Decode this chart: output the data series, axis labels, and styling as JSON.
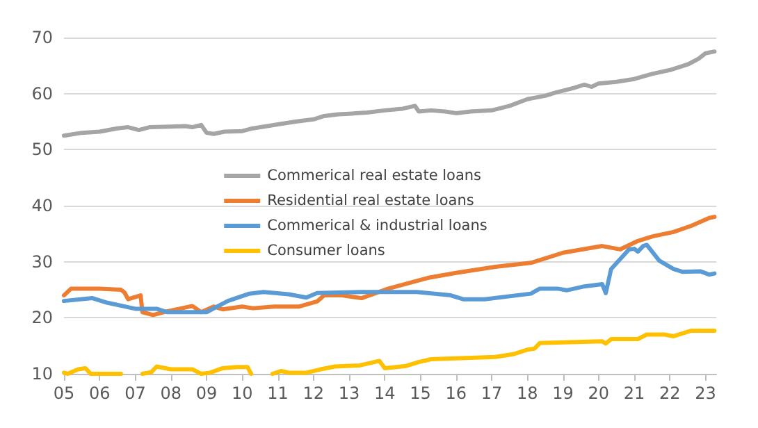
{
  "chart_data": {
    "type": "line",
    "xlim": [
      2005,
      2023.3
    ],
    "xticks": [
      {
        "value": 2005,
        "label": "05"
      },
      {
        "value": 2006,
        "label": "06"
      },
      {
        "value": 2007,
        "label": "07"
      },
      {
        "value": 2008,
        "label": "08"
      },
      {
        "value": 2009,
        "label": "09"
      },
      {
        "value": 2010,
        "label": "10"
      },
      {
        "value": 2011,
        "label": "11"
      },
      {
        "value": 2012,
        "label": "12"
      },
      {
        "value": 2013,
        "label": "13"
      },
      {
        "value": 2014,
        "label": "14"
      },
      {
        "value": 2015,
        "label": "15"
      },
      {
        "value": 2016,
        "label": "16"
      },
      {
        "value": 2017,
        "label": "17"
      },
      {
        "value": 2018,
        "label": "18"
      },
      {
        "value": 2019,
        "label": "19"
      },
      {
        "value": 2020,
        "label": "20"
      },
      {
        "value": 2021,
        "label": "21"
      },
      {
        "value": 2022,
        "label": "22"
      },
      {
        "value": 2023,
        "label": "23"
      }
    ],
    "ylim": [
      10,
      70
    ],
    "yticks": [
      10,
      20,
      30,
      40,
      50,
      60,
      70
    ],
    "grid": "y",
    "legend": "center",
    "marker": "none",
    "line_style": "solid",
    "series": [
      {
        "name": "Commerical real estate loans",
        "color": "#a5a5a5",
        "x": [
          2005,
          2005.5,
          2006,
          2006.5,
          2006.8,
          2007.1,
          2007.4,
          2008,
          2008.4,
          2008.6,
          2008.85,
          2009,
          2009.2,
          2009.5,
          2010,
          2010.3,
          2010.7,
          2011,
          2011.5,
          2012,
          2012.3,
          2012.7,
          2013,
          2013.5,
          2014,
          2014.5,
          2014.85,
          2014.95,
          2015.3,
          2015.7,
          2016,
          2016.4,
          2017,
          2017.5,
          2018,
          2018.5,
          2018.8,
          2019.3,
          2019.6,
          2019.8,
          2020,
          2020.5,
          2021,
          2021.5,
          2022,
          2022.5,
          2022.8,
          2023,
          2023.25
        ],
        "values": [
          52.5,
          53,
          53.2,
          53.8,
          54,
          53.5,
          54,
          54.1,
          54.2,
          54,
          54.4,
          53,
          52.8,
          53.2,
          53.3,
          53.8,
          54.2,
          54.5,
          55,
          55.4,
          56,
          56.3,
          56.4,
          56.6,
          57,
          57.3,
          57.8,
          56.8,
          57,
          56.8,
          56.5,
          56.8,
          57,
          57.8,
          59,
          59.6,
          60.2,
          61,
          61.6,
          61.2,
          61.8,
          62.1,
          62.6,
          63.5,
          64.2,
          65.2,
          66.2,
          67.2,
          67.5
        ]
      },
      {
        "name": "Residential real estate loans",
        "color": "#ed7d31",
        "x": [
          2005,
          2005.2,
          2006,
          2006.6,
          2006.7,
          2006.8,
          2007.15,
          2007.2,
          2007.5,
          2007.8,
          2008.6,
          2008.85,
          2009.2,
          2009.45,
          2010,
          2010.3,
          2010.9,
          2011.6,
          2012.1,
          2012.3,
          2012.8,
          2013.35,
          2014.1,
          2015.2,
          2016,
          2017.1,
          2018.1,
          2019,
          2020.1,
          2020.6,
          2021.1,
          2021.5,
          2022.1,
          2022.6,
          2023.1,
          2023.25
        ],
        "values": [
          24,
          25.2,
          25.2,
          25,
          24.5,
          23.3,
          24,
          21,
          20.5,
          21,
          22.1,
          21,
          22,
          21.5,
          22,
          21.7,
          22,
          22,
          22.9,
          24,
          24,
          23.5,
          25.2,
          27.1,
          28,
          29.1,
          29.8,
          31.6,
          32.8,
          32.2,
          33.7,
          34.5,
          35.3,
          36.4,
          37.8,
          38
        ]
      },
      {
        "name": "Commerical & industrial loans",
        "color": "#5b9bd5",
        "x": [
          2005,
          2005.8,
          2006.2,
          2007,
          2007.6,
          2007.9,
          2009,
          2009.6,
          2010.2,
          2010.6,
          2011.3,
          2011.8,
          2012.1,
          2013.35,
          2014.9,
          2015.85,
          2016.2,
          2016.8,
          2018.1,
          2018.35,
          2018.85,
          2019.1,
          2019.6,
          2020.1,
          2020.2,
          2020.35,
          2020.85,
          2021,
          2021.1,
          2021.25,
          2021.35,
          2021.7,
          2022.1,
          2022.35,
          2022.85,
          2023.1,
          2023.25
        ],
        "values": [
          23,
          23.5,
          22.7,
          21.6,
          21.6,
          21,
          21,
          23,
          24.3,
          24.6,
          24.2,
          23.6,
          24.4,
          24.6,
          24.6,
          24,
          23.3,
          23.3,
          24.3,
          25.2,
          25.2,
          24.9,
          25.6,
          26,
          24.4,
          28.7,
          32.2,
          32.3,
          31.8,
          32.8,
          33,
          30.2,
          28.7,
          28.2,
          28.3,
          27.7,
          27.9
        ]
      },
      {
        "name": "Consumer loans",
        "color": "#ffc000",
        "x": [
          2005,
          2005.1,
          2005.4,
          2005.6,
          2005.75,
          2006.1,
          2006.6,
          2006.9,
          2007.2,
          2007.45,
          2007.6,
          2008,
          2008.6,
          2008.85,
          2009.1,
          2009.45,
          2009.85,
          2010.15,
          2010.25,
          2010.6,
          2010.85,
          2011.1,
          2011.3,
          2011.8,
          2012.2,
          2012.6,
          2013.3,
          2013.85,
          2014,
          2014.6,
          2014.95,
          2015.3,
          2017.1,
          2017.6,
          2018,
          2018.2,
          2018.35,
          2019,
          2020.1,
          2020.2,
          2020.35,
          2021.1,
          2021.35,
          2021.85,
          2022.1,
          2022.6,
          2023.1,
          2023.25
        ],
        "values": [
          10.2,
          10,
          10.8,
          11,
          10,
          10,
          10,
          null,
          10,
          10.3,
          11.3,
          10.8,
          10.8,
          10,
          10.2,
          11,
          11.2,
          11.2,
          10,
          null,
          10,
          10.5,
          10.2,
          10.2,
          10.8,
          11.3,
          11.5,
          12.3,
          11,
          11.4,
          12.1,
          12.6,
          13,
          13.5,
          14.3,
          14.5,
          15.5,
          15.6,
          15.8,
          15.4,
          16.2,
          16.2,
          17,
          17,
          16.7,
          17.7,
          17.7,
          17.7
        ]
      }
    ]
  }
}
